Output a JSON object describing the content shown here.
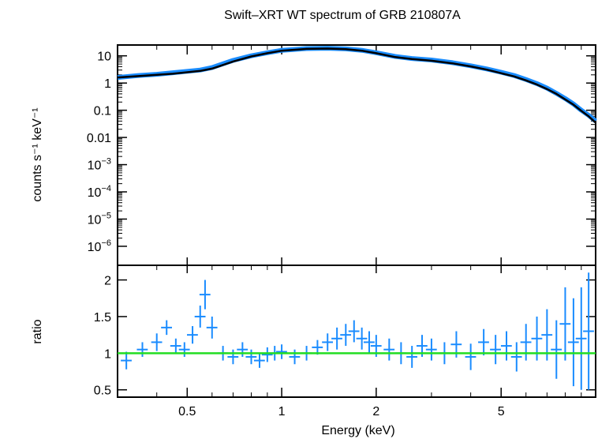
{
  "chart_data": [
    {
      "type": "line",
      "panel": "spectrum",
      "title": "Swift–XRT WT spectrum of GRB 210807A",
      "xlabel": "",
      "ylabel": "counts s⁻¹ keV⁻¹",
      "xscale": "log",
      "yscale": "log",
      "xlim": [
        0.3,
        10
      ],
      "ylim": [
        2e-07,
        25
      ],
      "yticks": [
        {
          "value": 10,
          "label": "10"
        },
        {
          "value": 1,
          "label": "1"
        },
        {
          "value": 0.1,
          "label": "0.1"
        },
        {
          "value": 0.01,
          "label": "0.01"
        },
        {
          "value": 0.001,
          "base": "10",
          "exp": "−3"
        },
        {
          "value": 0.0001,
          "base": "10",
          "exp": "−4"
        },
        {
          "value": 1e-05,
          "base": "10",
          "exp": "−5"
        },
        {
          "value": 1e-06,
          "base": "10",
          "exp": "−6"
        }
      ],
      "series": [
        {
          "role": "data",
          "color": "#1a8cff",
          "x": [
            0.3,
            0.35,
            0.4,
            0.45,
            0.5,
            0.55,
            0.6,
            0.65,
            0.7,
            0.8,
            0.9,
            1.0,
            1.2,
            1.4,
            1.6,
            1.8,
            2.0,
            2.3,
            2.6,
            3.0,
            3.5,
            4.0,
            4.5,
            5.0,
            5.5,
            6.0,
            6.5,
            7.0,
            7.5,
            8.0,
            8.5,
            9.0,
            9.5,
            10.0
          ],
          "y": [
            1.6,
            1.9,
            2.1,
            2.4,
            2.7,
            3.0,
            3.7,
            5.1,
            6.8,
            10,
            13,
            16,
            18.5,
            19,
            18,
            16,
            13,
            9.5,
            8,
            7,
            5.6,
            4.3,
            3.3,
            2.5,
            1.9,
            1.35,
            0.95,
            0.65,
            0.42,
            0.27,
            0.17,
            0.1,
            0.065,
            0.04
          ]
        },
        {
          "role": "model",
          "color": "#000000",
          "x": [
            0.3,
            0.35,
            0.4,
            0.45,
            0.5,
            0.55,
            0.6,
            0.65,
            0.7,
            0.8,
            0.9,
            1.0,
            1.2,
            1.4,
            1.6,
            1.8,
            2.0,
            2.3,
            2.6,
            3.0,
            3.5,
            4.0,
            4.5,
            5.0,
            5.5,
            6.0,
            6.5,
            7.0,
            7.5,
            8.0,
            8.5,
            9.0,
            9.5,
            10.0
          ],
          "y": [
            1.6,
            1.8,
            2.0,
            2.2,
            2.5,
            2.8,
            3.4,
            4.6,
            6.2,
            9.5,
            12.5,
            15.5,
            18,
            18.5,
            17.5,
            15.5,
            12.5,
            9,
            7.6,
            6.6,
            5.3,
            4.1,
            3.1,
            2.3,
            1.75,
            1.25,
            0.88,
            0.6,
            0.4,
            0.25,
            0.16,
            0.095,
            0.06,
            0.035
          ]
        }
      ]
    },
    {
      "type": "line",
      "panel": "ratio",
      "xlabel": "Energy (keV)",
      "ylabel": "ratio",
      "xscale": "log",
      "yscale": "linear",
      "xlim": [
        0.3,
        10
      ],
      "ylim": [
        0.4,
        2.2
      ],
      "xticks": [
        {
          "value": 0.5,
          "label": "0.5"
        },
        {
          "value": 1,
          "label": "1"
        },
        {
          "value": 2,
          "label": "2"
        },
        {
          "value": 5,
          "label": "5"
        }
      ],
      "yticks": [
        {
          "value": 0.5,
          "label": "0.5"
        },
        {
          "value": 1,
          "label": "1"
        },
        {
          "value": 1.5,
          "label": "1.5"
        },
        {
          "value": 2,
          "label": "2"
        }
      ],
      "reference_line": {
        "y": 1,
        "color": "#22dd22"
      },
      "series": [
        {
          "role": "ratio",
          "color": "#1a8cff",
          "x": [
            0.32,
            0.36,
            0.4,
            0.43,
            0.46,
            0.49,
            0.52,
            0.55,
            0.57,
            0.6,
            0.65,
            0.7,
            0.75,
            0.8,
            0.85,
            0.9,
            0.95,
            1.0,
            1.1,
            1.2,
            1.3,
            1.4,
            1.5,
            1.6,
            1.7,
            1.8,
            1.9,
            2.0,
            2.2,
            2.4,
            2.6,
            2.8,
            3.0,
            3.3,
            3.6,
            4.0,
            4.4,
            4.8,
            5.2,
            5.6,
            6.0,
            6.5,
            7.0,
            7.5,
            8.0,
            8.5,
            9.0,
            9.5
          ],
          "y": [
            0.9,
            1.05,
            1.15,
            1.35,
            1.1,
            1.05,
            1.25,
            1.5,
            1.8,
            1.35,
            1.0,
            0.95,
            1.05,
            0.95,
            0.9,
            0.98,
            1.0,
            1.02,
            0.95,
            1.0,
            1.08,
            1.15,
            1.2,
            1.25,
            1.3,
            1.2,
            1.15,
            1.1,
            1.05,
            1.0,
            0.95,
            1.1,
            1.05,
            1.0,
            1.12,
            0.95,
            1.15,
            1.05,
            1.1,
            0.95,
            1.15,
            1.2,
            1.25,
            1.05,
            1.4,
            1.15,
            1.2,
            1.3
          ],
          "yerr": [
            0.12,
            0.1,
            0.12,
            0.1,
            0.1,
            0.1,
            0.12,
            0.15,
            0.2,
            0.15,
            0.1,
            0.1,
            0.1,
            0.1,
            0.1,
            0.1,
            0.1,
            0.1,
            0.1,
            0.1,
            0.1,
            0.12,
            0.15,
            0.15,
            0.15,
            0.15,
            0.15,
            0.15,
            0.15,
            0.15,
            0.15,
            0.15,
            0.15,
            0.15,
            0.18,
            0.18,
            0.18,
            0.2,
            0.2,
            0.2,
            0.25,
            0.3,
            0.35,
            0.4,
            0.5,
            0.6,
            0.7,
            0.8
          ]
        }
      ]
    }
  ]
}
